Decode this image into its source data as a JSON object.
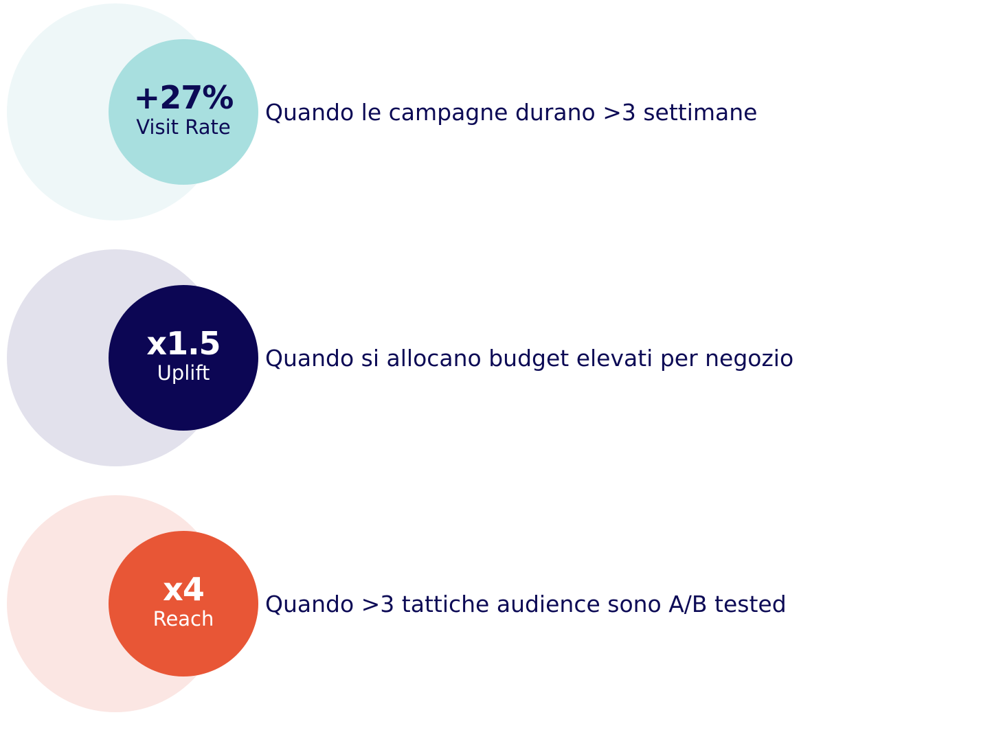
{
  "stats": [
    {
      "value": "+27%",
      "label": "Visit Rate",
      "description": "Quando le campagne durano >3 settimane",
      "colors": {
        "halo": "#eef7f8",
        "badge": "#a8dfdf",
        "text": "#0c0a55"
      }
    },
    {
      "value": "x1.5",
      "label": "Uplift",
      "description": "Quando si allocano budget elevati per negozio",
      "colors": {
        "halo": "#e2e1ec",
        "badge": "#0c0654",
        "text": "#ffffff"
      }
    },
    {
      "value": "x4",
      "label": "Reach",
      "description": "Quando >3 tattiche audience sono A/B tested",
      "colors": {
        "halo": "#fbe6e3",
        "badge": "#e85636",
        "text": "#ffffff"
      }
    }
  ]
}
